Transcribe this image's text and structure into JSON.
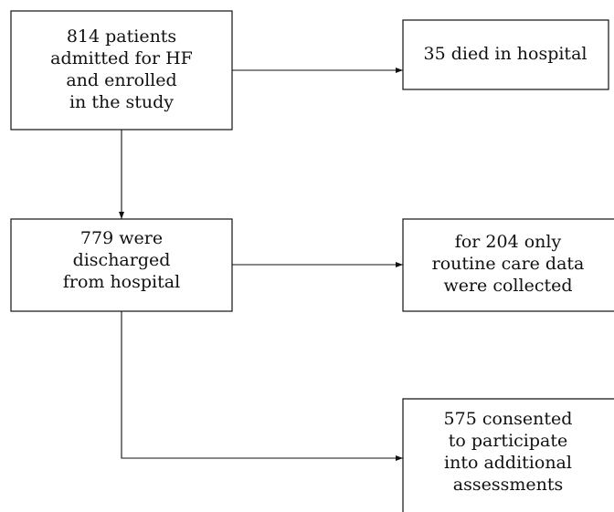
{
  "nodes": [
    {
      "lines": [
        "814 patients",
        "admitted for HF",
        "and enrolled",
        "in the study"
      ]
    },
    {
      "lines": [
        "35 died in hospital"
      ]
    },
    {
      "lines": [
        "779 were",
        "discharged",
        "from hospital"
      ]
    },
    {
      "lines": [
        "for 204 only",
        "routine care data",
        "were collected"
      ]
    },
    {
      "lines": [
        "575 consented",
        "to participate",
        "into additional",
        "assessments"
      ]
    }
  ]
}
